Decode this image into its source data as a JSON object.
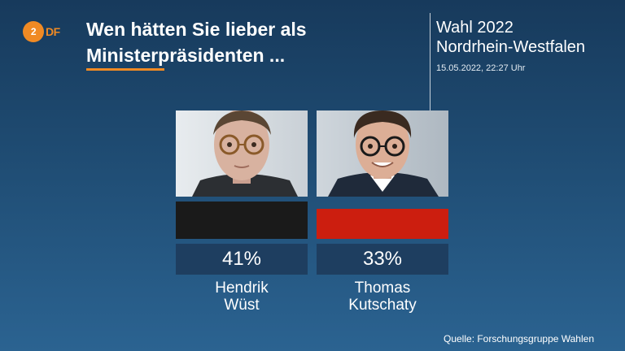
{
  "brand": {
    "logo_mark": "2",
    "logo_text": "DF",
    "logo_color": "#f08a24"
  },
  "header": {
    "headline_line1": "Wen hätten Sie lieber als",
    "headline_line2": "Ministerpräsidenten ...",
    "election_line1": "Wahl 2022",
    "election_line2": "Nordrhein-Westfalen",
    "timestamp": "15.05.2022, 22:27 Uhr"
  },
  "chart_data": {
    "type": "bar",
    "categories": [
      "Hendrik Wüst",
      "Thomas Kutschaty"
    ],
    "values": [
      41,
      33
    ],
    "unit": "%",
    "value_labels": [
      "41%",
      "33%"
    ],
    "colors": [
      "#1a1a1a",
      "#cc1e0f"
    ],
    "title": "Wen hätten Sie lieber als Ministerpräsidenten ...",
    "ylim": [
      0,
      41
    ]
  },
  "candidates": [
    {
      "first_name": "Hendrik",
      "last_name": "Wüst",
      "value_label": "41%",
      "photo_icon": "portrait-hendrik-wuest"
    },
    {
      "first_name": "Thomas",
      "last_name": "Kutschaty",
      "value_label": "33%",
      "photo_icon": "portrait-thomas-kutschaty"
    }
  ],
  "footer": {
    "source": "Quelle: Forschungsgruppe Wahlen"
  }
}
